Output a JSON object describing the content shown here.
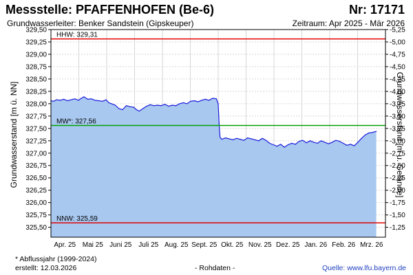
{
  "header": {
    "title": "Messstelle: PFAFFENHOFEN (Be-6)",
    "nr": "Nr: 17171",
    "aquifer": "Grundwasserleiter:   Benker Sandstein (Gipskeuper)",
    "period": "Zeitraum: Apr 2025 - Mär 2026"
  },
  "footer": {
    "note": "* Abflussjahr (1999-2024)",
    "created": "erstellt:  12.03.2026",
    "raw": "- Rohdaten -",
    "source": "Quelle: www.lfu.bayern.de"
  },
  "colors": {
    "fill": "#a8c8f0",
    "line": "#1a1adc",
    "hhw": "#e00000",
    "nnw": "#e00000",
    "mw": "#00a000"
  },
  "chart_data": {
    "type": "area",
    "ylabel": "Grundwasserstand [m ü. NN]",
    "ylabel_right": "Grundwasserstand [m u. Gelände]",
    "ylim": [
      325.3,
      329.5
    ],
    "yticks": [
      "329,50",
      "329,25",
      "329,00",
      "328,75",
      "328,50",
      "328,25",
      "328,00",
      "327,75",
      "327,50",
      "327,25",
      "327,00",
      "326,75",
      "326,50",
      "326,25",
      "326,00",
      "325,75",
      "325,50"
    ],
    "ytick_values": [
      329.5,
      329.25,
      329.0,
      328.75,
      328.5,
      328.25,
      328.0,
      327.75,
      327.5,
      327.25,
      327.0,
      326.75,
      326.5,
      326.25,
      326.0,
      325.75,
      325.5
    ],
    "yticks_right": [
      "-5,25",
      "-5,00",
      "-4,75",
      "-4,50",
      "-4,25",
      "-4,00",
      "-3,75",
      "-3,50",
      "-3,25",
      "-3,00",
      "-2,75",
      "-2,50",
      "-2,25",
      "-2,00",
      "-1,75",
      "-1,50",
      "-1,25"
    ],
    "xticks": [
      "Apr. 25",
      "Mai 25",
      "Juni 25",
      "Juli 25",
      "Aug. 25",
      "Sept. 25",
      "Okt. 25",
      "Nov. 25",
      "Dez. 25",
      "Jan. 26",
      "Feb. 26",
      "Mrz. 26"
    ],
    "xlim_days": [
      0,
      364
    ],
    "grid": true,
    "reference_lines": [
      {
        "label": "HHW: 329,31",
        "value": 329.31
      },
      {
        "label": "MW*: 327,56",
        "value": 327.56
      },
      {
        "label": "NNW: 325,59",
        "value": 325.59
      }
    ],
    "series": [
      {
        "x_day": [
          0,
          3,
          6,
          10,
          14,
          18,
          22,
          26,
          30,
          33,
          36,
          40,
          44,
          48,
          52,
          56,
          60,
          63,
          66,
          70,
          74,
          78,
          82,
          86,
          90,
          93,
          96,
          100,
          104,
          108,
          112,
          116,
          120,
          124,
          128,
          132,
          136,
          140,
          144,
          148,
          152,
          156,
          160,
          164,
          168,
          172,
          176,
          180,
          182,
          183,
          184,
          186,
          190,
          194,
          198,
          202,
          206,
          210,
          214,
          218,
          222,
          226,
          230,
          234,
          238,
          242,
          246,
          250,
          254,
          258,
          262,
          266,
          270,
          274,
          278,
          282,
          286,
          290,
          294,
          298,
          302,
          306,
          310,
          314,
          318,
          322,
          326,
          330,
          334,
          338,
          342,
          346,
          350,
          354
        ],
        "values": [
          328.06,
          328.05,
          328.08,
          328.07,
          328.09,
          328.06,
          328.08,
          328.1,
          328.07,
          328.11,
          328.14,
          328.09,
          328.1,
          328.07,
          328.06,
          328.05,
          328.08,
          328.02,
          328.0,
          327.97,
          327.9,
          327.88,
          327.96,
          327.94,
          327.93,
          327.88,
          327.85,
          327.9,
          327.95,
          327.98,
          327.96,
          327.97,
          327.96,
          327.99,
          327.95,
          327.97,
          327.96,
          328.0,
          328.02,
          328.0,
          328.05,
          328.06,
          328.04,
          328.07,
          328.09,
          328.07,
          328.11,
          328.1,
          328.0,
          327.6,
          327.32,
          327.28,
          327.31,
          327.29,
          327.27,
          327.3,
          327.28,
          327.26,
          327.31,
          327.29,
          327.27,
          327.25,
          327.3,
          327.26,
          327.2,
          327.17,
          327.14,
          327.18,
          327.12,
          327.17,
          327.2,
          327.18,
          327.24,
          327.26,
          327.21,
          327.25,
          327.22,
          327.2,
          327.25,
          327.22,
          327.19,
          327.22,
          327.26,
          327.24,
          327.2,
          327.16,
          327.18,
          327.15,
          327.22,
          327.3,
          327.37,
          327.41,
          327.42,
          327.44
        ]
      }
    ]
  }
}
